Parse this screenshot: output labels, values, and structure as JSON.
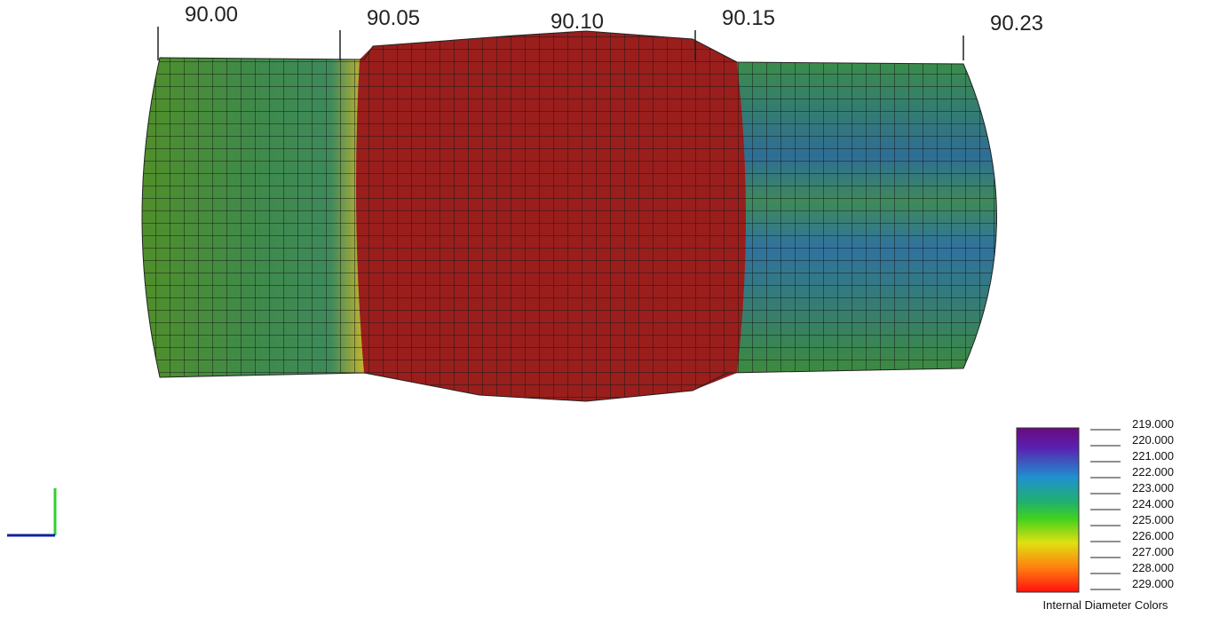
{
  "distance_markers": [
    "90.00",
    "90.05",
    "90.10",
    "90.15",
    "90.23"
  ],
  "legend": {
    "title": "Internal Diameter Colors",
    "ticks": [
      "219.000",
      "220.000",
      "221.000",
      "222.000",
      "223.000",
      "224.000",
      "225.000",
      "226.000",
      "227.000",
      "228.000",
      "229.000"
    ]
  }
}
